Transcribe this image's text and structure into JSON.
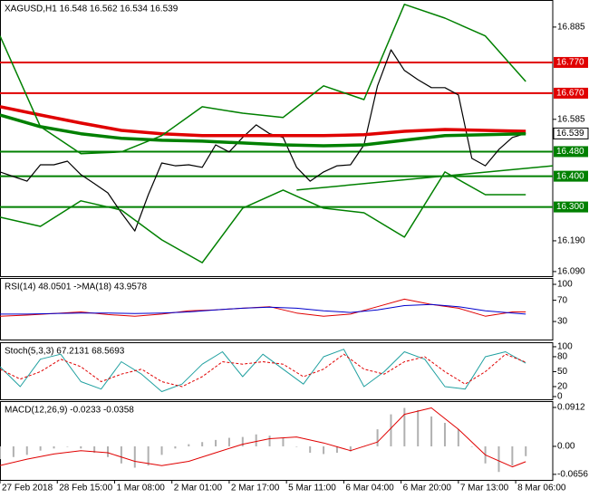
{
  "chart_data": [
    {
      "type": "line",
      "title": "XAGUSD,H1  16.548 16.562 16.534 16.539",
      "xlim": [
        0,
        164
      ],
      "xticks": [
        {
          "value": 0,
          "label": "27 Feb 2018"
        },
        {
          "value": 17,
          "label": "28 Feb 15:00"
        },
        {
          "value": 34,
          "label": "1 Mar 08:00"
        },
        {
          "value": 51,
          "label": "2 Mar 01:00"
        },
        {
          "value": 68,
          "label": "2 Mar 17:00"
        },
        {
          "value": 85,
          "label": "5 Mar 11:00"
        },
        {
          "value": 102,
          "label": "6 Mar 04:00"
        },
        {
          "value": 119,
          "label": "6 Mar 20:00"
        },
        {
          "value": 136,
          "label": "7 Mar 13:00"
        },
        {
          "value": 153,
          "label": "8 Mar 06:00"
        }
      ],
      "ylim": [
        16.075,
        16.973
      ],
      "yticks": [
        16.885,
        16.585,
        {
          "value": 16.19,
          "label": "16.190"
        },
        {
          "value": 16.09,
          "label": "16.090"
        }
      ],
      "levels": [
        {
          "value": 16.77,
          "label": "16.770",
          "color": "#e00000"
        },
        {
          "value": 16.67,
          "label": "16.670",
          "color": "#e00000"
        },
        {
          "value": 16.48,
          "label": "16.480",
          "color": "#008000"
        },
        {
          "value": 16.4,
          "label": "16.400",
          "color": "#008000"
        },
        {
          "value": 16.3,
          "label": "16.300",
          "color": "#008000"
        }
      ],
      "trendline": {
        "x": [
          88,
          164
        ],
        "values": [
          16.355,
          16.434
        ],
        "color": "#008000"
      },
      "last_price": 16.539,
      "series": [
        {
          "color": "#000000",
          "width": 1.2,
          "x": [
            0,
            4,
            8,
            12,
            16,
            20,
            24,
            28,
            32,
            36,
            40,
            44,
            48,
            52,
            56,
            60,
            64,
            68,
            72,
            76,
            80,
            84,
            88,
            92,
            96,
            100,
            104,
            108,
            112,
            116,
            120,
            124,
            128,
            132,
            136,
            140,
            144,
            148,
            152,
            156
          ],
          "values": [
            16.414,
            16.399,
            16.384,
            16.437,
            16.437,
            16.449,
            16.405,
            16.376,
            16.346,
            16.281,
            16.222,
            16.34,
            16.443,
            16.434,
            16.437,
            16.429,
            16.502,
            16.479,
            16.526,
            16.567,
            16.538,
            16.526,
            16.429,
            16.384,
            16.414,
            16.434,
            16.437,
            16.502,
            16.694,
            16.811,
            16.744,
            16.714,
            16.688,
            16.688,
            16.664,
            16.458,
            16.434,
            16.487,
            16.526,
            16.539
          ]
        },
        {
          "color": "#e00000",
          "width": 3.5,
          "x": [
            0,
            12,
            24,
            36,
            48,
            60,
            72,
            84,
            96,
            108,
            120,
            132,
            144,
            156
          ],
          "values": [
            16.626,
            16.599,
            16.573,
            16.549,
            16.538,
            16.532,
            16.532,
            16.532,
            16.532,
            16.535,
            16.546,
            16.552,
            16.549,
            16.546
          ]
        },
        {
          "color": "#008000",
          "width": 3.5,
          "x": [
            0,
            12,
            24,
            36,
            48,
            60,
            72,
            84,
            96,
            108,
            120,
            132,
            144,
            156
          ],
          "values": [
            16.599,
            16.561,
            16.538,
            16.523,
            16.517,
            16.514,
            16.508,
            16.502,
            16.499,
            16.502,
            16.517,
            16.532,
            16.535,
            16.538
          ]
        },
        {
          "color": "#008000",
          "width": 1.5,
          "x": [
            0,
            12,
            24,
            36,
            48,
            60,
            72,
            84,
            96,
            108,
            120,
            132,
            144,
            156
          ],
          "values": [
            16.856,
            16.561,
            16.473,
            16.479,
            16.532,
            16.626,
            16.605,
            16.591,
            16.694,
            16.649,
            16.959,
            16.914,
            16.856,
            16.708
          ]
        },
        {
          "color": "#008000",
          "width": 1.5,
          "x": [
            0,
            12,
            24,
            36,
            48,
            60,
            72,
            84,
            96,
            108,
            120,
            132,
            144,
            156
          ],
          "values": [
            16.267,
            16.237,
            16.32,
            16.29,
            16.193,
            16.119,
            16.296,
            16.355,
            16.296,
            16.281,
            16.202,
            16.414,
            16.34,
            16.34
          ]
        }
      ]
    },
    {
      "type": "line",
      "title": "RSI(14) 48.0501  ->MA(18) 43.9578",
      "ylim": [
        -4,
        112
      ],
      "yticks": [
        100,
        70,
        30
      ],
      "series": [
        {
          "color": "#e00000",
          "width": 1,
          "x": [
            0,
            8,
            16,
            24,
            32,
            40,
            48,
            56,
            64,
            72,
            80,
            88,
            96,
            104,
            112,
            120,
            128,
            136,
            144,
            152,
            156
          ],
          "values": [
            40,
            42,
            45,
            48,
            43,
            40,
            44,
            50,
            52,
            55,
            58,
            46,
            40,
            44,
            58,
            72,
            62,
            55,
            40,
            48,
            48
          ]
        },
        {
          "color": "#0000cc",
          "width": 1,
          "x": [
            0,
            8,
            16,
            24,
            32,
            40,
            48,
            56,
            64,
            72,
            80,
            88,
            96,
            104,
            112,
            120,
            128,
            136,
            144,
            152,
            156
          ],
          "values": [
            44,
            44,
            45,
            46,
            46,
            45,
            46,
            48,
            52,
            55,
            57,
            55,
            50,
            47,
            52,
            60,
            62,
            58,
            50,
            46,
            44
          ]
        }
      ]
    },
    {
      "type": "line",
      "title": "Stoch(5,3,3) 67.2131 68.5693",
      "ylim": [
        -5.5,
        109
      ],
      "yticks": [
        100,
        80,
        50,
        20,
        0
      ],
      "series": [
        {
          "color": "#20a0a0",
          "width": 1,
          "x": [
            0,
            6,
            12,
            18,
            24,
            30,
            36,
            42,
            48,
            54,
            60,
            66,
            72,
            78,
            84,
            90,
            96,
            102,
            108,
            114,
            120,
            126,
            132,
            138,
            144,
            150,
            156
          ],
          "values": [
            60,
            20,
            75,
            85,
            30,
            15,
            70,
            45,
            10,
            25,
            65,
            90,
            40,
            85,
            55,
            25,
            80,
            95,
            20,
            50,
            90,
            75,
            20,
            15,
            80,
            90,
            67
          ]
        },
        {
          "color": "#e00000",
          "width": 1,
          "dashed": true,
          "x": [
            0,
            6,
            12,
            18,
            24,
            30,
            36,
            42,
            48,
            54,
            60,
            66,
            72,
            78,
            84,
            90,
            96,
            102,
            108,
            114,
            120,
            126,
            132,
            138,
            144,
            150,
            156
          ],
          "values": [
            55,
            35,
            50,
            75,
            60,
            30,
            45,
            55,
            30,
            20,
            40,
            70,
            65,
            70,
            65,
            40,
            55,
            85,
            55,
            45,
            70,
            80,
            50,
            25,
            50,
            85,
            69
          ]
        }
      ]
    },
    {
      "type": "bar",
      "title": "MACD(12,26,9) -0.0233 -0.0358",
      "ylim": [
        -0.0786,
        0.106
      ],
      "yticks": [
        0.0912,
        {
          "value": 0,
          "label": "0.00"
        },
        -0.0656
      ],
      "series": [
        {
          "color": "#b0b0b0",
          "x": [
            0,
            4,
            8,
            12,
            16,
            20,
            24,
            28,
            32,
            36,
            40,
            44,
            48,
            52,
            56,
            60,
            64,
            68,
            72,
            76,
            80,
            84,
            88,
            92,
            96,
            100,
            104,
            108,
            112,
            116,
            120,
            124,
            128,
            132,
            136,
            140,
            144,
            148,
            152,
            156
          ],
          "values": [
            -0.03,
            -0.025,
            -0.02,
            -0.01,
            -0.005,
            0,
            -0.005,
            -0.015,
            -0.025,
            -0.04,
            -0.05,
            -0.045,
            -0.02,
            -0.005,
            0.005,
            0.01,
            0.015,
            0.02,
            0.022,
            0.028,
            0.025,
            0.02,
            0,
            -0.015,
            -0.018,
            -0.015,
            -0.012,
            0,
            0.04,
            0.075,
            0.09,
            0.085,
            0.07,
            0.055,
            0.04,
            0,
            -0.04,
            -0.06,
            -0.045,
            -0.023
          ]
        },
        {
          "type": "line",
          "color": "#e00000",
          "width": 1,
          "x": [
            0,
            8,
            16,
            24,
            32,
            40,
            48,
            56,
            64,
            72,
            80,
            88,
            96,
            104,
            112,
            120,
            128,
            136,
            144,
            152,
            156
          ],
          "values": [
            -0.045,
            -0.03,
            -0.018,
            -0.01,
            -0.015,
            -0.035,
            -0.045,
            -0.035,
            -0.015,
            0.005,
            0.018,
            0.022,
            0.008,
            -0.01,
            0.01,
            0.075,
            0.09,
            0.04,
            -0.02,
            -0.048,
            -0.036
          ]
        }
      ]
    }
  ]
}
